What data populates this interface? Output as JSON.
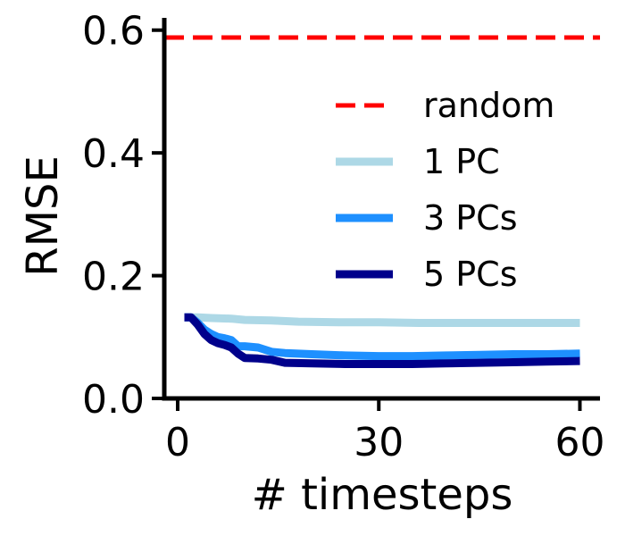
{
  "chart_data": {
    "type": "line",
    "title": "",
    "xlabel": "# timesteps",
    "ylabel": "RMSE",
    "xlim": [
      -2,
      63
    ],
    "ylim": [
      0.0,
      0.62
    ],
    "xticks": [
      0,
      30,
      60
    ],
    "xtick_labels": [
      "0",
      "30",
      "60"
    ],
    "yticks": [
      0.0,
      0.2,
      0.4,
      0.6
    ],
    "ytick_labels": [
      "0.0",
      "0.2",
      "0.4",
      "0.6"
    ],
    "grid": false,
    "legend_position": "right",
    "series": [
      {
        "name": "random",
        "style": "dashed",
        "color": "#ff0000",
        "x": [
          -2,
          63
        ],
        "y": [
          0.588,
          0.588
        ]
      },
      {
        "name": "1 PC",
        "style": "solid",
        "color": "#add8e6",
        "x": [
          1,
          3,
          5,
          8,
          10,
          14,
          18,
          24,
          30,
          36,
          42,
          48,
          54,
          60
        ],
        "y": [
          0.132,
          0.132,
          0.131,
          0.13,
          0.128,
          0.127,
          0.125,
          0.124,
          0.124,
          0.123,
          0.123,
          0.123,
          0.123,
          0.123
        ]
      },
      {
        "name": "3 PCs",
        "style": "solid",
        "color": "#1e90ff",
        "x": [
          1,
          2,
          3,
          4,
          5,
          6,
          7,
          8,
          9,
          10,
          12,
          14,
          16,
          20,
          25,
          30,
          35,
          40,
          45,
          50,
          55,
          60
        ],
        "y": [
          0.132,
          0.132,
          0.123,
          0.112,
          0.105,
          0.1,
          0.098,
          0.095,
          0.085,
          0.085,
          0.083,
          0.076,
          0.074,
          0.072,
          0.07,
          0.069,
          0.069,
          0.07,
          0.071,
          0.072,
          0.072,
          0.073
        ]
      },
      {
        "name": "5 PCs",
        "style": "solid",
        "color": "#00008b",
        "x": [
          1,
          2,
          3,
          4,
          5,
          6,
          7,
          8,
          9,
          10,
          12,
          14,
          16,
          20,
          25,
          30,
          35,
          40,
          45,
          50,
          55,
          60
        ],
        "y": [
          0.132,
          0.132,
          0.12,
          0.105,
          0.095,
          0.09,
          0.087,
          0.083,
          0.073,
          0.066,
          0.065,
          0.063,
          0.058,
          0.057,
          0.056,
          0.056,
          0.056,
          0.057,
          0.058,
          0.059,
          0.06,
          0.061
        ]
      }
    ]
  }
}
